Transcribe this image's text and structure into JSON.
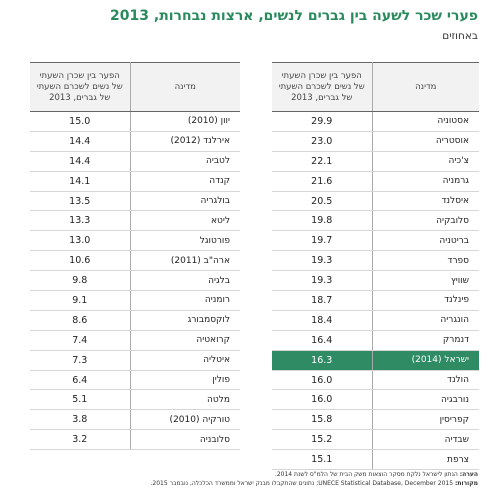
{
  "title": "פערי שכר לשעה בין גברים לנשים, ארצות נבחרות, 2013",
  "subtitle": "באחוזים",
  "headers": {
    "country": "מדינה",
    "value": "הפער בין שכרן השעתי של נשים לשכרם השעתי של גברים, 2013"
  },
  "right_table": [
    {
      "country": "אסטוניה",
      "value": "29.9"
    },
    {
      "country": "אוסטריה",
      "value": "23.0"
    },
    {
      "country": "צ'כיה",
      "value": "22.1"
    },
    {
      "country": "גרמניה",
      "value": "21.6"
    },
    {
      "country": "איסלנד",
      "value": "20.5"
    },
    {
      "country": "סלובקיה",
      "value": "19.8"
    },
    {
      "country": "בריטניה",
      "value": "19.7"
    },
    {
      "country": "ספרד",
      "value": "19.3"
    },
    {
      "country": "שוויץ",
      "value": "19.3"
    },
    {
      "country": "פינלנד",
      "value": "18.7"
    },
    {
      "country": "הונגריה",
      "value": "18.4"
    },
    {
      "country": "דנמרק",
      "value": "16.4"
    },
    {
      "country": "ישראל (2014)",
      "value": "16.3"
    },
    {
      "country": "הולנד",
      "value": "16.0"
    },
    {
      "country": "נורבגיה",
      "value": "16.0"
    },
    {
      "country": "קפריסין",
      "value": "15.8"
    },
    {
      "country": "שבדיה",
      "value": "15.2"
    },
    {
      "country": "צרפת",
      "value": "15.1"
    }
  ],
  "left_table": [
    {
      "country": "יוון (2010)",
      "value": "15.0"
    },
    {
      "country": "אירלנד (2012)",
      "value": "14.4"
    },
    {
      "country": "לטביה",
      "value": "14.4"
    },
    {
      "country": "קנדה",
      "value": "14.1"
    },
    {
      "country": "בולגריה",
      "value": "13.5"
    },
    {
      "country": "ליטא",
      "value": "13.3"
    },
    {
      "country": "פורטוגל",
      "value": "13.0"
    },
    {
      "country": "ארה\"ב (2011)",
      "value": "10.6"
    },
    {
      "country": "בלגיה",
      "value": "9.8"
    },
    {
      "country": "רומניה",
      "value": "9.1"
    },
    {
      "country": "לוקסמבורג",
      "value": "8.6"
    },
    {
      "country": "קרואטיה",
      "value": "7.4"
    },
    {
      "country": "איטליה",
      "value": "7.3"
    },
    {
      "country": "פולין",
      "value": "6.4"
    },
    {
      "country": "מלטה",
      "value": "5.1"
    },
    {
      "country": "טורקיה (2010)",
      "value": "3.8"
    },
    {
      "country": "סלובניה",
      "value": "3.2"
    }
  ],
  "highlight_country": "ישראל (2014)",
  "highlight_color": "#2e8b63",
  "title_color": "#2a8a5e",
  "note": {
    "label": "הערה:",
    "text": "הנתון לישראל נלקח מסקר הוצאות משק הבית של הלמ\"ס לשנת 2014."
  },
  "source": {
    "label": "מקורות:",
    "text": "UNECE Statistical Database, December 2015; נתונים שהתקבלו מבנק ישראל וממשרד הכלכלה, נובמבר 2015."
  }
}
